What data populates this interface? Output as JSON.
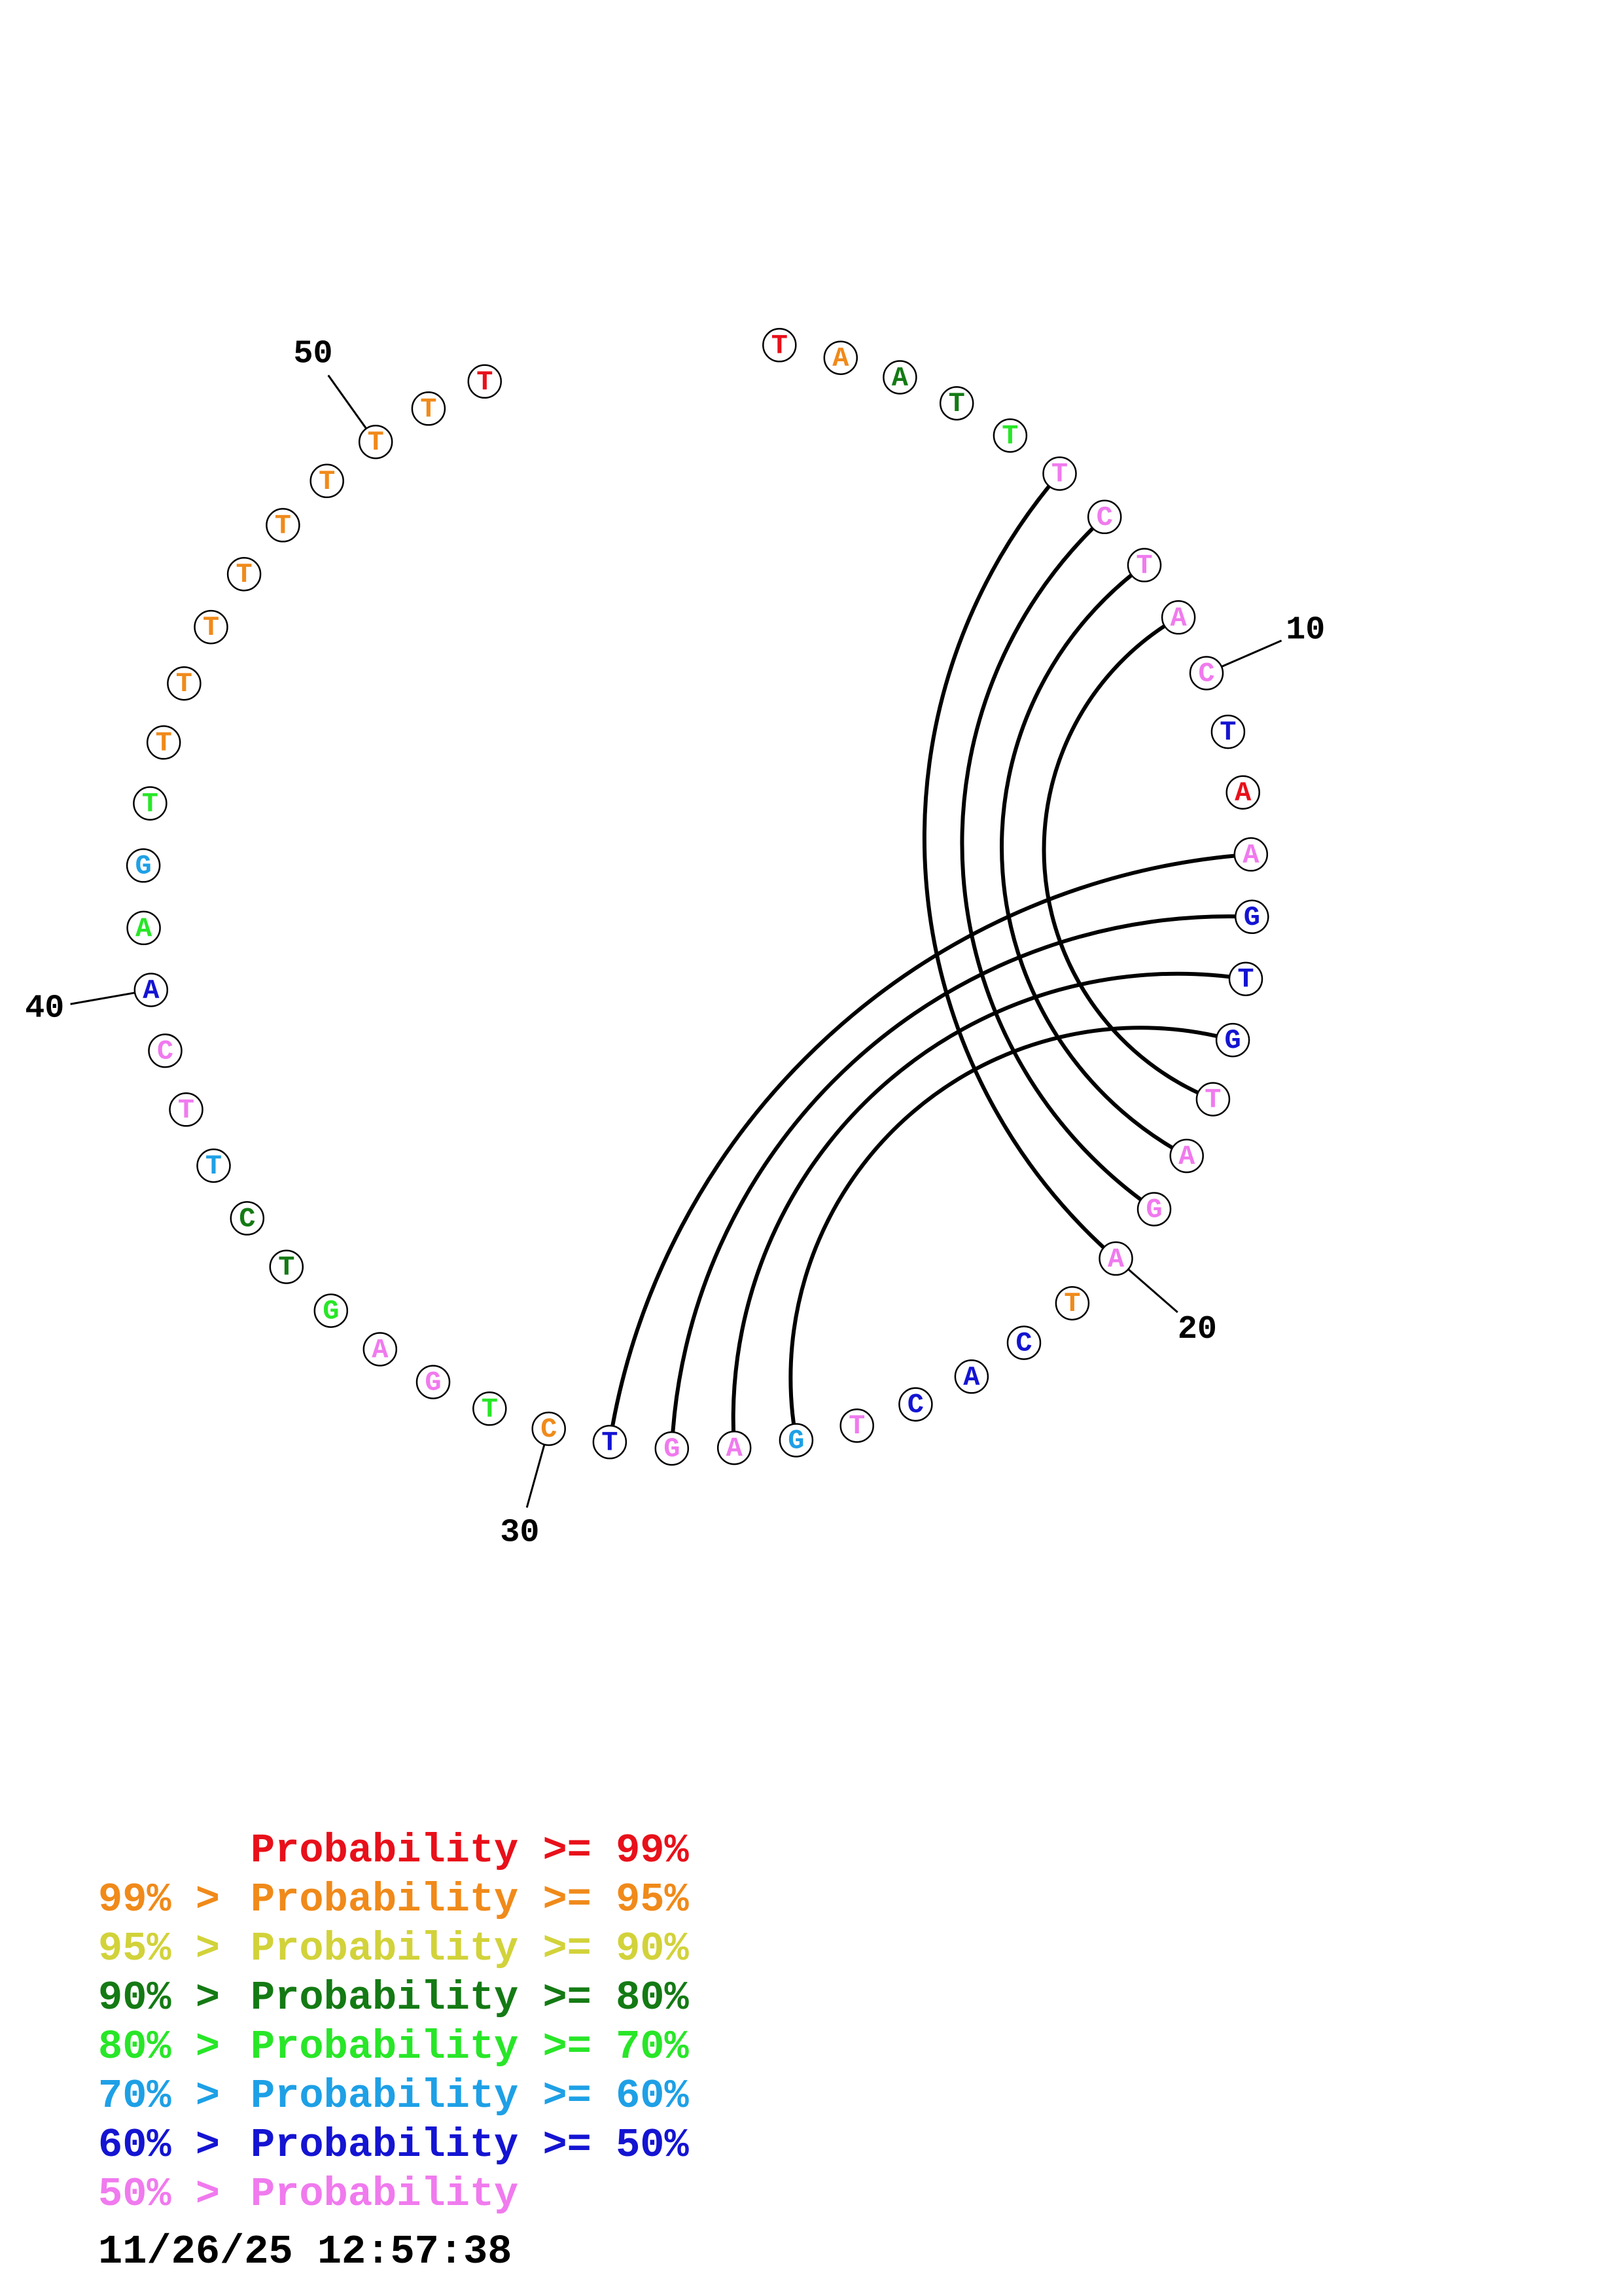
{
  "colors": {
    "p99": "#e8101a",
    "p95": "#f08a1a",
    "p90": "#d2d23a",
    "p80": "#147a14",
    "p70": "#28e628",
    "p60": "#1ea0e6",
    "p50": "#1414d2",
    "p0": "#f07aee"
  },
  "sequence": [
    {
      "n": 1,
      "base": "T",
      "prob": "p99"
    },
    {
      "n": 2,
      "base": "A",
      "prob": "p95"
    },
    {
      "n": 3,
      "base": "A",
      "prob": "p80"
    },
    {
      "n": 4,
      "base": "T",
      "prob": "p80"
    },
    {
      "n": 5,
      "base": "T",
      "prob": "p70"
    },
    {
      "n": 6,
      "base": "T",
      "prob": "p0"
    },
    {
      "n": 7,
      "base": "C",
      "prob": "p0"
    },
    {
      "n": 8,
      "base": "T",
      "prob": "p0"
    },
    {
      "n": 9,
      "base": "A",
      "prob": "p0"
    },
    {
      "n": 10,
      "base": "C",
      "prob": "p0"
    },
    {
      "n": 11,
      "base": "T",
      "prob": "p50"
    },
    {
      "n": 12,
      "base": "A",
      "prob": "p99"
    },
    {
      "n": 13,
      "base": "A",
      "prob": "p0"
    },
    {
      "n": 14,
      "base": "G",
      "prob": "p50"
    },
    {
      "n": 15,
      "base": "T",
      "prob": "p50"
    },
    {
      "n": 16,
      "base": "G",
      "prob": "p50"
    },
    {
      "n": 17,
      "base": "T",
      "prob": "p0"
    },
    {
      "n": 18,
      "base": "A",
      "prob": "p0"
    },
    {
      "n": 19,
      "base": "G",
      "prob": "p0"
    },
    {
      "n": 20,
      "base": "A",
      "prob": "p0"
    },
    {
      "n": 21,
      "base": "T",
      "prob": "p95"
    },
    {
      "n": 22,
      "base": "C",
      "prob": "p50"
    },
    {
      "n": 23,
      "base": "A",
      "prob": "p50"
    },
    {
      "n": 24,
      "base": "C",
      "prob": "p50"
    },
    {
      "n": 25,
      "base": "T",
      "prob": "p0"
    },
    {
      "n": 26,
      "base": "G",
      "prob": "p60"
    },
    {
      "n": 27,
      "base": "A",
      "prob": "p0"
    },
    {
      "n": 28,
      "base": "G",
      "prob": "p0"
    },
    {
      "n": 29,
      "base": "T",
      "prob": "p50"
    },
    {
      "n": 30,
      "base": "C",
      "prob": "p95"
    },
    {
      "n": 31,
      "base": "T",
      "prob": "p70"
    },
    {
      "n": 32,
      "base": "G",
      "prob": "p0"
    },
    {
      "n": 33,
      "base": "A",
      "prob": "p0"
    },
    {
      "n": 34,
      "base": "G",
      "prob": "p70"
    },
    {
      "n": 35,
      "base": "T",
      "prob": "p80"
    },
    {
      "n": 36,
      "base": "C",
      "prob": "p80"
    },
    {
      "n": 37,
      "base": "T",
      "prob": "p60"
    },
    {
      "n": 38,
      "base": "T",
      "prob": "p0"
    },
    {
      "n": 39,
      "base": "C",
      "prob": "p0"
    },
    {
      "n": 40,
      "base": "A",
      "prob": "p50"
    },
    {
      "n": 41,
      "base": "A",
      "prob": "p70"
    },
    {
      "n": 42,
      "base": "G",
      "prob": "p60"
    },
    {
      "n": 43,
      "base": "T",
      "prob": "p70"
    },
    {
      "n": 44,
      "base": "T",
      "prob": "p95"
    },
    {
      "n": 45,
      "base": "T",
      "prob": "p95"
    },
    {
      "n": 46,
      "base": "T",
      "prob": "p95"
    },
    {
      "n": 47,
      "base": "T",
      "prob": "p95"
    },
    {
      "n": 48,
      "base": "T",
      "prob": "p95"
    },
    {
      "n": 49,
      "base": "T",
      "prob": "p95"
    },
    {
      "n": 50,
      "base": "T",
      "prob": "p95"
    },
    {
      "n": 51,
      "base": "T",
      "prob": "p95"
    },
    {
      "n": 52,
      "base": "T",
      "prob": "p99"
    }
  ],
  "pairs": [
    [
      6,
      20
    ],
    [
      7,
      19
    ],
    [
      8,
      18
    ],
    [
      9,
      17
    ],
    [
      13,
      29
    ],
    [
      14,
      28
    ],
    [
      15,
      27
    ],
    [
      16,
      26
    ]
  ],
  "position_labels": [
    {
      "n": 10,
      "text": "10"
    },
    {
      "n": 20,
      "text": "20"
    },
    {
      "n": 30,
      "text": "30"
    },
    {
      "n": 40,
      "text": "40"
    },
    {
      "n": 50,
      "text": "50"
    }
  ],
  "legend": [
    {
      "prefix": "",
      "label": "Probability >= 99%",
      "prob": "p99"
    },
    {
      "prefix": "99% > ",
      "label": "Probability >= 95%",
      "prob": "p95"
    },
    {
      "prefix": "95% > ",
      "label": "Probability >= 90%",
      "prob": "p90"
    },
    {
      "prefix": "90% > ",
      "label": "Probability >= 80%",
      "prob": "p80"
    },
    {
      "prefix": "80% > ",
      "label": "Probability >= 70%",
      "prob": "p70"
    },
    {
      "prefix": "70% > ",
      "label": "Probability >= 60%",
      "prob": "p60"
    },
    {
      "prefix": "60% > ",
      "label": "Probability >= 50%",
      "prob": "p50"
    },
    {
      "prefix": "50% > ",
      "label": "Probability",
      "prob": "p0"
    }
  ],
  "timestamp": "11/26/25 12:57:38"
}
